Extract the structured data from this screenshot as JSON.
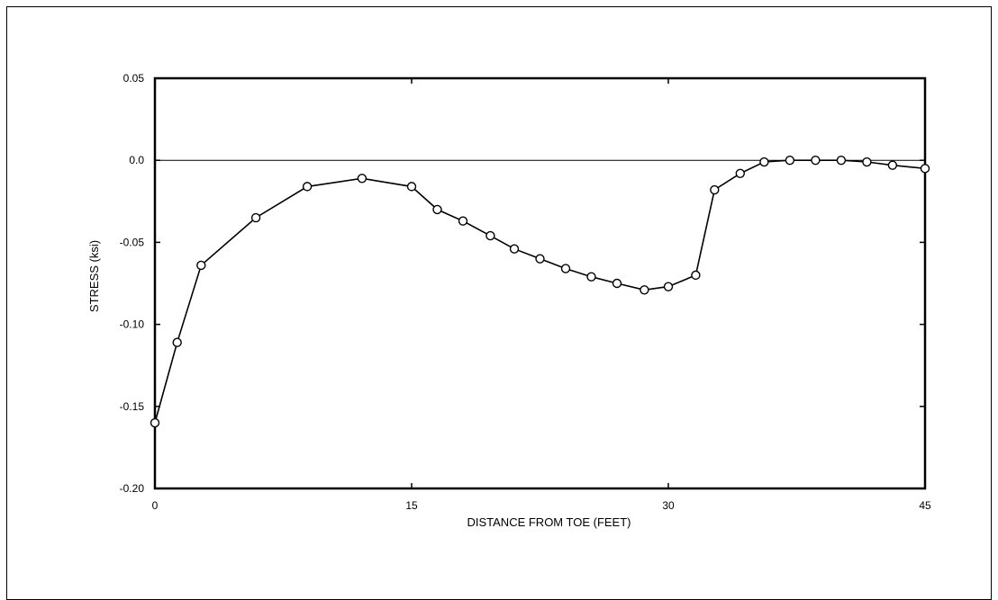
{
  "chart_data": {
    "type": "line",
    "title": "",
    "xlabel": "DISTANCE FROM TOE (FEET)",
    "ylabel": "STRESS (ksi)",
    "xlim": [
      0,
      45
    ],
    "ylim": [
      -0.2,
      0.05
    ],
    "xticks": [
      0,
      15,
      30,
      45
    ],
    "yticks": [
      0.05,
      0.0,
      -0.05,
      -0.1,
      -0.15,
      -0.2
    ],
    "xtick_labels": [
      "0",
      "15",
      "30",
      "45"
    ],
    "ytick_labels": [
      "0.05",
      "0.0",
      "-0.05",
      "-0.10",
      "-0.15",
      "-0.20"
    ],
    "zero_line": true,
    "grid": false,
    "marker": "open-circle",
    "line_color": "#000000",
    "series": [
      {
        "x": [
          0,
          1.3,
          2.7,
          5.9,
          8.9,
          12.1,
          15.0,
          16.5,
          18.0,
          19.6,
          21.0,
          22.5,
          24.0,
          25.5,
          27.0,
          28.6,
          30.0,
          31.6,
          32.7,
          34.2,
          35.6,
          37.1,
          38.6,
          40.1,
          41.6,
          43.1,
          45.0
        ],
        "y": [
          -0.16,
          -0.111,
          -0.064,
          -0.035,
          -0.016,
          -0.011,
          -0.016,
          -0.03,
          -0.037,
          -0.046,
          -0.054,
          -0.06,
          -0.066,
          -0.071,
          -0.075,
          -0.079,
          -0.077,
          -0.07,
          -0.018,
          -0.008,
          -0.001,
          0.0,
          0.0,
          0.0,
          -0.001,
          -0.003,
          -0.005
        ]
      }
    ]
  }
}
